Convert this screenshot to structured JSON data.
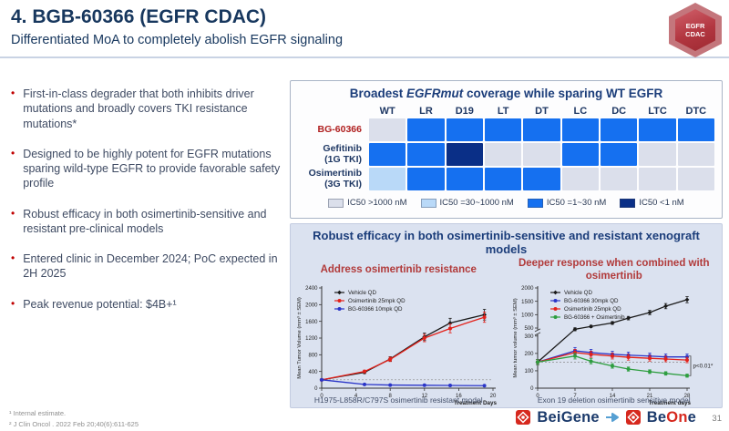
{
  "slide": {
    "title": "4. BGB-60366 (EGFR CDAC)",
    "subtitle": "Differentiated MoA to completely abolish EGFR signaling",
    "badge": {
      "line1": "EGFR",
      "line2": "CDAC"
    }
  },
  "bullets": [
    "First-in-class degrader that both inhibits driver mutations and broadly covers TKI resistance mutations*",
    "Designed to be highly potent for EGFR mutations sparing wild-type EGFR to provide favorable safety profile",
    "Robust efficacy in both osimertinib-sensitive and resistant pre-clinical models",
    "Entered clinic in December 2024; PoC expected in 2H 2025",
    "Peak revenue potential: $4B+¹"
  ],
  "heatmap": {
    "title_prefix": "Broadest ",
    "title_italic": "EGFRmut",
    "title_suffix": " coverage while sparing WT EGFR",
    "columns": [
      "WT",
      "LR",
      "D19",
      "LT",
      "DT",
      "LC",
      "DC",
      "LTC",
      "DTC"
    ],
    "rows": [
      {
        "label": "BG-60366",
        "sublabel": "",
        "label_color": "#b02020",
        "cells": [
          ">1000",
          "1-30",
          "1-30",
          "1-30",
          "1-30",
          "1-30",
          "1-30",
          "1-30",
          "1-30"
        ]
      },
      {
        "label": "Gefitinib",
        "sublabel": "(1G TKI)",
        "label_color": "#1f3864",
        "cells": [
          "1-30",
          "1-30",
          "<1",
          ">1000",
          ">1000",
          "1-30",
          "1-30",
          ">1000",
          ">1000"
        ]
      },
      {
        "label": "Osimertinib",
        "sublabel": "(3G TKI)",
        "label_color": "#1f3864",
        "cells": [
          "30-1000",
          "1-30",
          "1-30",
          "1-30",
          "1-30",
          ">1000",
          ">1000",
          ">1000",
          ">1000"
        ]
      }
    ],
    "palette": {
      ">1000": "#dbdfeb",
      "30-1000": "#b9d9f8",
      "1-30": "#1570f0",
      "<1": "#0a2f87"
    },
    "legend": [
      {
        "swatch": ">1000",
        "label": "IC50 >1000 nM"
      },
      {
        "swatch": "30-1000",
        "label": "IC50 =30~1000 nM"
      },
      {
        "swatch": "1-30",
        "label": "IC50 =1~30 nM"
      },
      {
        "swatch": "<1",
        "label": "IC50 <1 nM"
      }
    ]
  },
  "xenograft": {
    "title": "Robust efficacy in both osimertinib-sensitive and resistant xenograft models"
  },
  "chart_data": [
    {
      "type": "line",
      "title": "Address osimertinib resistance",
      "caption": "H1975-L858R/C797S osimertinib resistant model",
      "xlabel": "Treatment Days",
      "ylabel": "Mean Tumor Volume (mm³ ± SEM)",
      "xlim": [
        0,
        20
      ],
      "ylim": [
        0,
        2400
      ],
      "xticks": [
        0,
        4,
        8,
        12,
        16,
        20
      ],
      "yticks": [
        0,
        400,
        800,
        1200,
        1600,
        2000,
        2400
      ],
      "baseline": 200,
      "series": [
        {
          "name": "Vehicle QD",
          "color": "#1a1a1a",
          "marker": "diamond",
          "x": [
            0,
            5,
            8,
            12,
            15,
            19
          ],
          "y": [
            200,
            380,
            700,
            1230,
            1560,
            1760
          ]
        },
        {
          "name": "Osimertinib 25mpk QD",
          "color": "#e3211a",
          "marker": "circle",
          "x": [
            0,
            5,
            8,
            12,
            15,
            19
          ],
          "y": [
            200,
            400,
            690,
            1200,
            1430,
            1700
          ]
        },
        {
          "name": "BG-60366 10mpk QD",
          "color": "#2a35c8",
          "marker": "circle",
          "x": [
            0,
            5,
            8,
            12,
            15,
            19
          ],
          "y": [
            200,
            90,
            75,
            70,
            65,
            60
          ]
        }
      ]
    },
    {
      "type": "line",
      "title": "Deeper response when combined with osimertinib",
      "caption": "Exon 19 deletion osimertinib sensitive model",
      "xlabel": "Treatment days",
      "ylabel": "Mean tumor volume (mm³ ± SEM)",
      "xlim": [
        0,
        28
      ],
      "axis_break": true,
      "yticks_lower": [
        0,
        100,
        200,
        300
      ],
      "yticks_upper": [
        500,
        1000,
        1500,
        2000
      ],
      "xticks": [
        0,
        7,
        14,
        21,
        28
      ],
      "baseline": 150,
      "annotation": "p<0.01*",
      "annotation_y": [
        185,
        72
      ],
      "series": [
        {
          "name": "Vehicle QD",
          "color": "#1a1a1a",
          "marker": "diamond",
          "x": [
            0,
            7,
            10,
            14,
            17,
            21,
            24,
            28
          ],
          "y": [
            150,
            470,
            560,
            690,
            870,
            1080,
            1320,
            1560
          ]
        },
        {
          "name": "BG-60366 30mpk QD",
          "color": "#2a35c8",
          "marker": "circle",
          "x": [
            0,
            7,
            10,
            14,
            17,
            21,
            24,
            28
          ],
          "y": [
            150,
            215,
            205,
            195,
            190,
            185,
            180,
            180
          ]
        },
        {
          "name": "Osimertinib 25mpk QD",
          "color": "#e3211a",
          "marker": "circle",
          "x": [
            0,
            7,
            10,
            14,
            17,
            21,
            24,
            28
          ],
          "y": [
            150,
            205,
            195,
            185,
            178,
            172,
            168,
            162
          ]
        },
        {
          "name": "BG-60366 + Osimertinib",
          "color": "#2e9e40",
          "marker": "circle",
          "x": [
            0,
            7,
            10,
            14,
            17,
            21,
            24,
            28
          ],
          "y": [
            150,
            185,
            155,
            128,
            110,
            95,
            85,
            72
          ]
        }
      ]
    }
  ],
  "footnotes": [
    "¹ Internal estimate.",
    "² J Clin Oncol . 2022 Feb 20;40(6):611-625"
  ],
  "footer": {
    "page_number": "31",
    "beigene_parts": [
      {
        "t": "Bei",
        "c": "#1b3a6b"
      },
      {
        "t": "Gene",
        "c": "#1b3a6b"
      }
    ],
    "beone_parts": [
      {
        "t": "Be",
        "c": "#1b3a6b"
      },
      {
        "t": "On",
        "c": "#d6281e"
      },
      {
        "t": "e",
        "c": "#1b3a6b"
      }
    ],
    "arrow_color": "#56a0d3",
    "seal_color": "#d6281e"
  }
}
